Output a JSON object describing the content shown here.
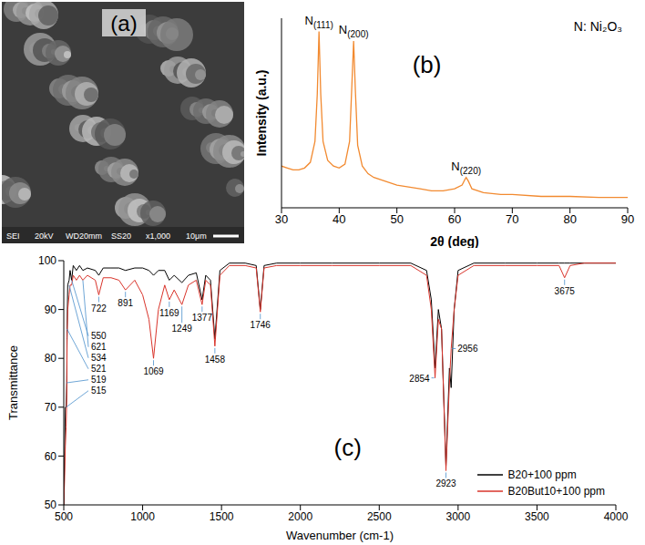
{
  "image": {
    "label": "(a)",
    "info_bar": [
      "SEI",
      "20kV",
      "WD20mm",
      "SS20",
      "x1,000",
      "10μm"
    ]
  },
  "chart_data": [
    {
      "type": "line",
      "title": "(b)",
      "x_label": "2θ (deg)",
      "y_label": "Intensity (a.u.)",
      "x": [
        30,
        31,
        32,
        33,
        34,
        35,
        35.8,
        36.2,
        36.5,
        36.8,
        37.2,
        38,
        39,
        40,
        41,
        41.8,
        42.2,
        42.5,
        42.8,
        43.2,
        44,
        45,
        46,
        48,
        50,
        52,
        54,
        56,
        58,
        60,
        61.3,
        61.8,
        62,
        62.4,
        63,
        65,
        68,
        70,
        75,
        80,
        85,
        90
      ],
      "values": [
        22,
        21,
        20,
        20,
        21,
        24,
        35,
        60,
        93,
        60,
        35,
        25,
        22,
        21,
        23,
        35,
        65,
        88,
        62,
        33,
        22,
        18,
        16,
        14,
        12,
        11,
        10,
        9,
        9,
        10,
        12,
        15,
        16,
        14,
        10,
        8,
        7,
        7,
        6,
        6,
        5.5,
        5.5
      ],
      "color": "#f28a30",
      "xlim": [
        30,
        90
      ],
      "xticks": [
        30,
        40,
        50,
        60,
        70,
        80,
        90
      ],
      "ylim": [
        0,
        100
      ],
      "tick_labels": "x",
      "grid": false,
      "annotations": [
        {
          "text": "N(111)",
          "x": 36.5,
          "y": 93
        },
        {
          "text": "N(200)",
          "x": 42.5,
          "y": 88
        },
        {
          "text": "N(220)",
          "x": 62,
          "y": 16
        },
        {
          "text": "N: Ni₂O₃"
        }
      ]
    },
    {
      "type": "line",
      "title": "(c)",
      "x_label": "Wavenumber (cm-1)",
      "y_label": "Transmittance",
      "x": [
        500,
        505,
        510,
        515,
        519,
        521,
        525,
        534,
        540,
        550,
        560,
        580,
        600,
        621,
        650,
        700,
        722,
        750,
        800,
        850,
        891,
        950,
        1000,
        1040,
        1069,
        1100,
        1140,
        1169,
        1200,
        1249,
        1290,
        1340,
        1377,
        1400,
        1430,
        1458,
        1490,
        1550,
        1650,
        1720,
        1746,
        1770,
        1850,
        2000,
        2200,
        2500,
        2700,
        2800,
        2830,
        2854,
        2875,
        2895,
        2923,
        2945,
        2956,
        2975,
        3000,
        3100,
        3300,
        3500,
        3640,
        3675,
        3710,
        3800,
        4000
      ],
      "series": [
        {
          "name": "B20+100 ppm",
          "color": "#000000",
          "values": [
            50,
            60,
            70,
            70,
            75,
            86,
            95,
            96,
            98,
            96,
            99,
            98,
            99,
            98,
            98.5,
            98,
            97,
            98.5,
            98.5,
            98.5,
            98,
            98.5,
            98.5,
            98,
            97,
            98,
            98,
            96,
            97,
            95.5,
            97,
            97.5,
            92,
            97,
            96,
            84,
            98,
            99.5,
            99.5,
            99,
            90,
            99,
            99.5,
            99.5,
            99.5,
            99.5,
            99.5,
            98,
            92,
            78,
            90,
            86,
            58,
            78,
            74,
            90,
            98,
            99.5,
            99.5,
            99.5,
            99.5,
            99.5,
            99.5,
            99.5,
            99.5
          ]
        },
        {
          "name": "B20But10+100 ppm",
          "color": "#d9342b",
          "values": [
            50,
            55,
            62,
            66,
            72,
            84,
            90,
            93,
            95,
            95,
            97,
            96,
            97,
            96,
            97,
            96,
            93,
            96.5,
            96.5,
            96,
            94,
            96,
            93,
            88,
            80,
            90,
            95,
            92,
            94,
            91,
            95,
            96,
            91,
            96,
            95,
            82.5,
            97,
            99,
            99,
            98.5,
            89.5,
            98.5,
            99,
            99,
            99,
            99,
            99,
            97,
            90,
            76,
            88,
            86,
            57,
            75,
            82,
            90,
            97,
            99,
            99,
            99,
            99,
            96.5,
            99,
            99.5,
            99.5
          ]
        }
      ],
      "xlim": [
        500,
        4000
      ],
      "xticks": [
        500,
        1000,
        1500,
        2000,
        2500,
        3000,
        3500,
        4000
      ],
      "ylim": [
        50,
        100
      ],
      "yticks": [
        50,
        60,
        70,
        80,
        90,
        100
      ],
      "legend": "lower right",
      "grid": false,
      "annotations": [
        {
          "text": "515",
          "x": 515,
          "y": 70
        },
        {
          "text": "519",
          "x": 519,
          "y": 75
        },
        {
          "text": "521",
          "x": 521,
          "y": 86
        },
        {
          "text": "534",
          "x": 534,
          "y": 95
        },
        {
          "text": "550",
          "x": 550,
          "y": 96
        },
        {
          "text": "621",
          "x": 621,
          "y": 96
        },
        {
          "text": "722",
          "x": 722,
          "y": 93
        },
        {
          "text": "891",
          "x": 891,
          "y": 94
        },
        {
          "text": "1069",
          "x": 1069,
          "y": 80
        },
        {
          "text": "1169",
          "x": 1169,
          "y": 92
        },
        {
          "text": "1249",
          "x": 1249,
          "y": 91
        },
        {
          "text": "1377",
          "x": 1377,
          "y": 91
        },
        {
          "text": "1458",
          "x": 1458,
          "y": 82.5
        },
        {
          "text": "1746",
          "x": 1746,
          "y": 89.5
        },
        {
          "text": "2854",
          "x": 2854,
          "y": 76
        },
        {
          "text": "2923",
          "x": 2923,
          "y": 57
        },
        {
          "text": "2956",
          "x": 2956,
          "y": 82
        },
        {
          "text": "3675",
          "x": 3675,
          "y": 96.5
        }
      ]
    }
  ]
}
